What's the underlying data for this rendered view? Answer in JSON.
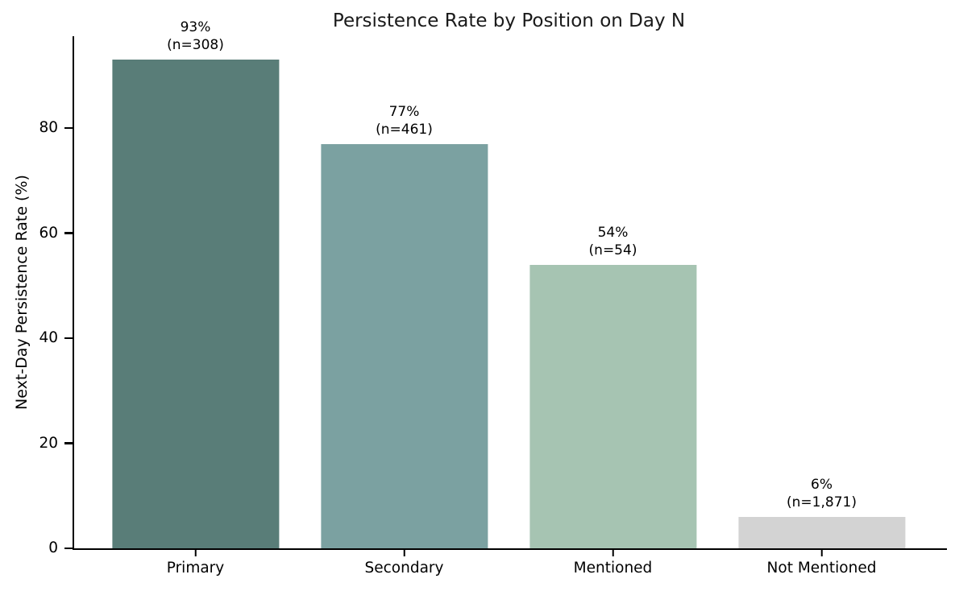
{
  "chart_data": {
    "type": "bar",
    "title": "Persistence Rate by Position on Day N",
    "xlabel": "",
    "ylabel": "Next-Day Persistence Rate (%)",
    "categories": [
      "Primary",
      "Secondary",
      "Mentioned",
      "Not Mentioned"
    ],
    "values": [
      93,
      77,
      54,
      6
    ],
    "counts": [
      308,
      461,
      54,
      1871
    ],
    "bar_labels": [
      {
        "pct": "93%",
        "n": "(n=308)"
      },
      {
        "pct": "77%",
        "n": "(n=461)"
      },
      {
        "pct": "54%",
        "n": "(n=54)"
      },
      {
        "pct": "6%",
        "n": "(n=1,871)"
      }
    ],
    "bar_colors": [
      "#597d78",
      "#7ba1a1",
      "#a6c4b2",
      "#d3d3d3"
    ],
    "yticks": [
      0,
      20,
      40,
      60,
      80
    ],
    "ylim": [
      0,
      97.5
    ],
    "grid": false,
    "legend": false,
    "background": "#ffffff",
    "axis_color": "#000000"
  }
}
